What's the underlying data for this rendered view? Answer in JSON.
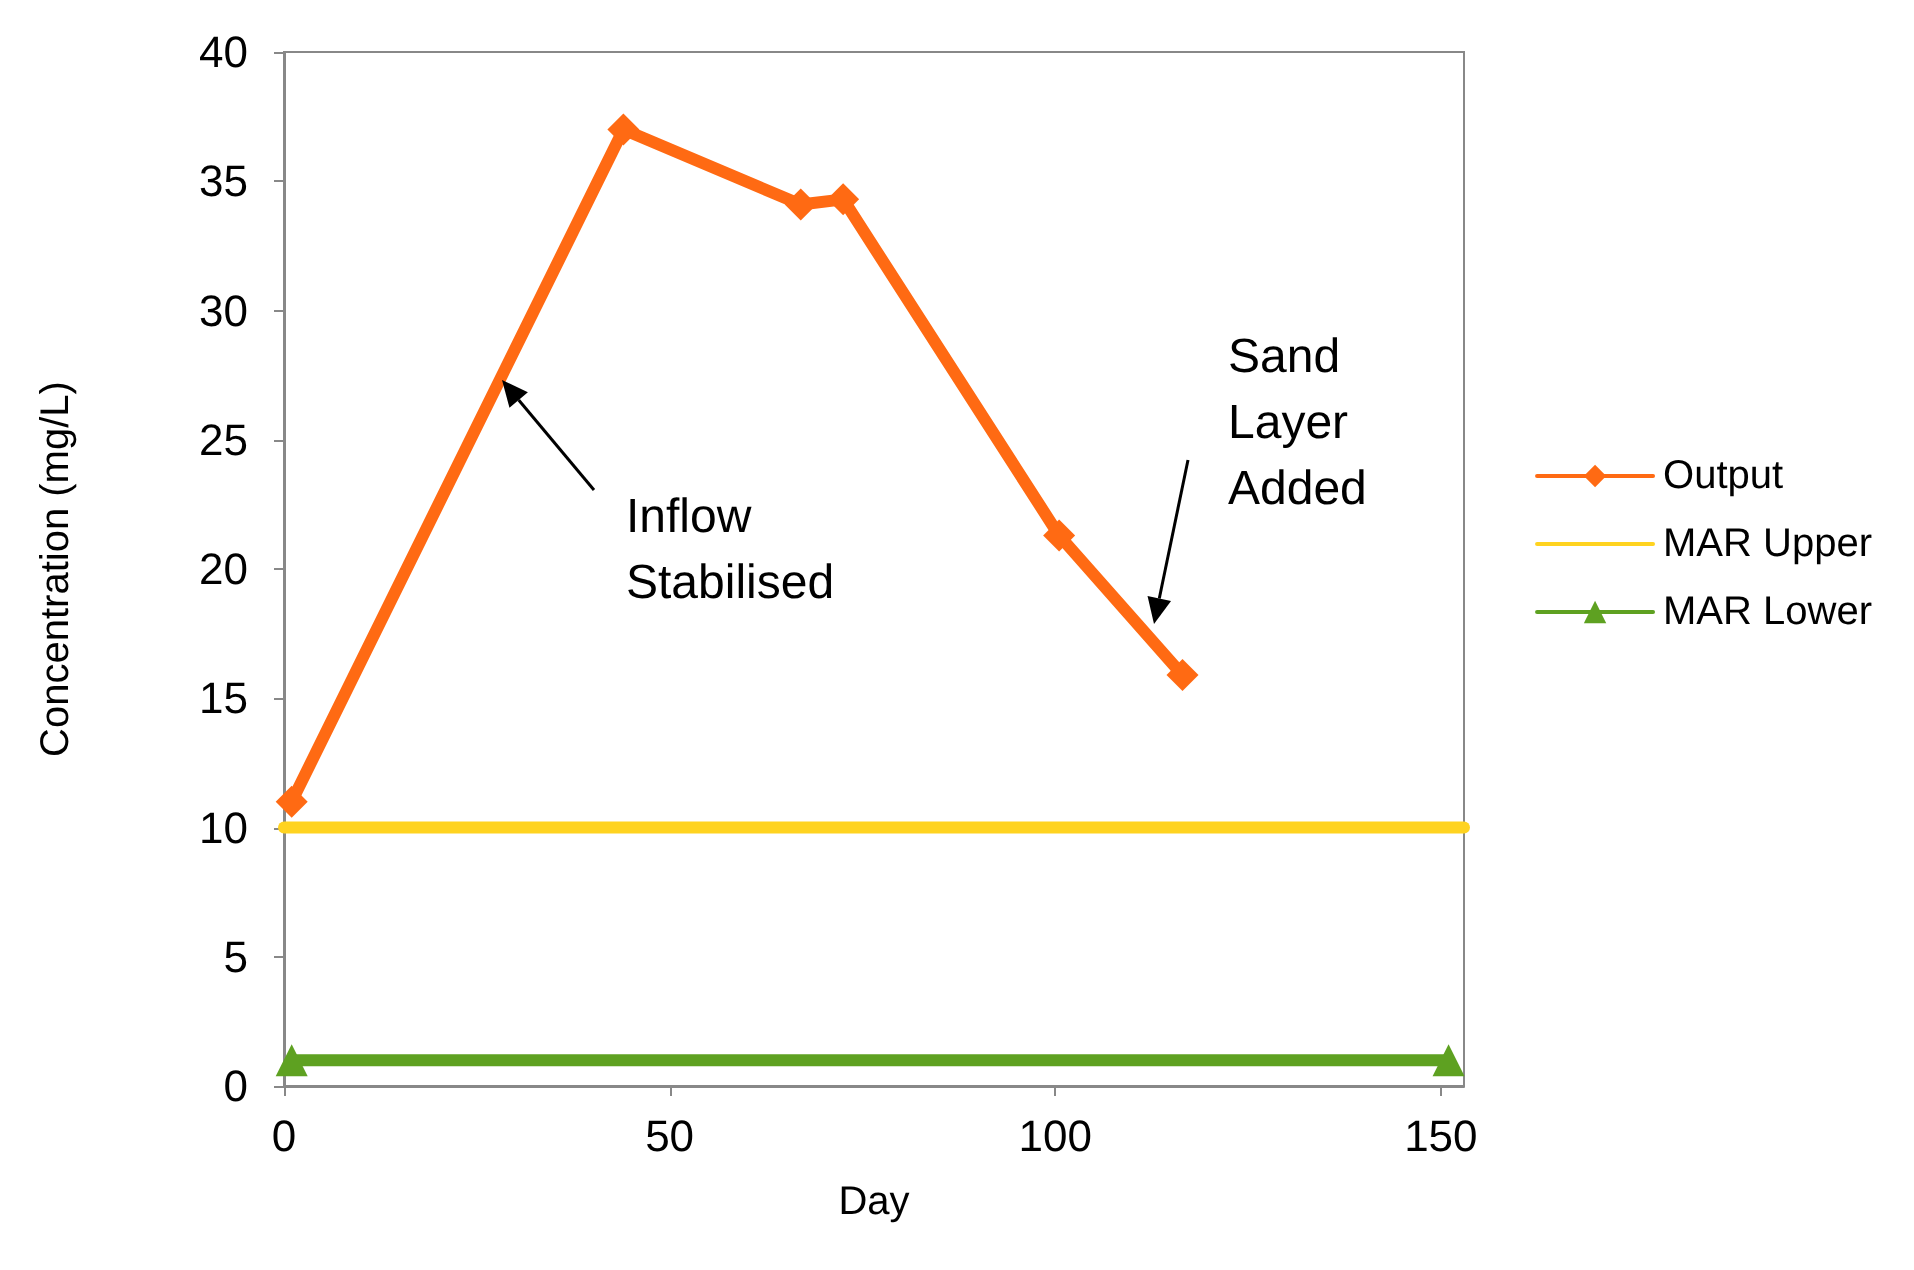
{
  "chart_data": {
    "type": "line",
    "xlabel": "Day",
    "ylabel": "Concentration (mg/L)",
    "xlim": [
      0,
      153
    ],
    "xticks": [
      0,
      50,
      100,
      150
    ],
    "ylim": [
      0,
      40
    ],
    "yticks": [
      0,
      5,
      10,
      15,
      20,
      25,
      30,
      35,
      40
    ],
    "grid": false,
    "legend": "right",
    "series": [
      {
        "name": "Output",
        "color": "#ff6a13",
        "marker": "diamond",
        "x": [
          1,
          44,
          67,
          72.5,
          100.5,
          116.5
        ],
        "values": [
          11,
          37,
          34.1,
          34.3,
          21.3,
          15.9
        ]
      },
      {
        "name": "MAR Upper",
        "color": "#ffd320",
        "marker": "none",
        "x": [
          0,
          153
        ],
        "values": [
          10,
          10
        ]
      },
      {
        "name": "MAR Lower",
        "color": "#5ea121",
        "marker": "triangle",
        "x": [
          1,
          151
        ],
        "values": [
          1,
          1
        ]
      }
    ],
    "annotations": [
      "Inflow\nStabilised",
      "Sand\nLayer\nAdded"
    ]
  }
}
